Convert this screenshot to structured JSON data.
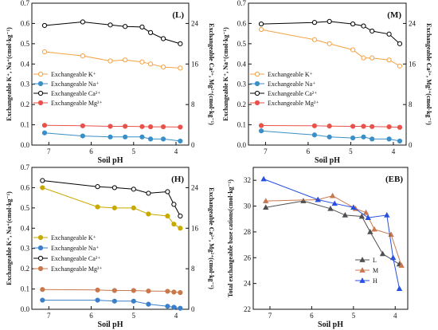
{
  "chart_data": [
    {
      "type": "line",
      "tag": "(L)",
      "xlabel": "Soil pH",
      "ylabel": "Exchangeable K⁺, Na⁺(cmol·kg⁻¹)",
      "ylabel_right": "Exchangeable Ca²⁺, Mg²⁺(cmol·kg⁻¹)",
      "xlim": [
        7.4,
        3.7
      ],
      "x_ticks": [
        "7",
        "6",
        "5",
        "4"
      ],
      "ylim": [
        0,
        0.7
      ],
      "y_ticks": [
        "0.0",
        "0.1",
        "0.2",
        "0.3",
        "0.4",
        "0.5",
        "0.6",
        "0.7"
      ],
      "ylim_right": [
        0,
        28
      ],
      "y_ticks_right": [
        "0",
        "8",
        "16",
        "24"
      ],
      "legend_position": "center-left",
      "series": [
        {
          "name": "Exchangeable K⁺",
          "color": "#f5a142",
          "marker": "circle-open",
          "x": [
            7.1,
            6.2,
            5.55,
            5.2,
            4.8,
            4.6,
            4.3,
            3.9
          ],
          "y": [
            0.46,
            0.44,
            0.415,
            0.42,
            0.41,
            0.4,
            0.385,
            0.38
          ]
        },
        {
          "name": "Exchangeable Na⁺",
          "color": "#3a8fc8",
          "marker": "circle",
          "x": [
            7.1,
            6.2,
            5.55,
            5.2,
            4.8,
            4.6,
            4.3,
            3.9
          ],
          "y": [
            0.06,
            0.045,
            0.04,
            0.04,
            0.04,
            0.03,
            0.03,
            0.02
          ]
        },
        {
          "name": "Exchangeable Ca²⁺",
          "color": "#000000",
          "marker": "circle-open",
          "axis": "right",
          "x": [
            7.1,
            6.2,
            5.55,
            5.2,
            4.8,
            4.6,
            4.3,
            3.9
          ],
          "y": [
            23.6,
            24.3,
            23.7,
            23.4,
            23.3,
            22.2,
            21.0,
            20.0
          ]
        },
        {
          "name": "Exchangeable Mg²⁺",
          "color": "#e8524a",
          "marker": "circle",
          "axis": "right",
          "x": [
            7.1,
            6.2,
            5.55,
            5.2,
            4.8,
            4.6,
            4.3,
            3.9
          ],
          "y": [
            3.9,
            3.8,
            3.7,
            3.7,
            3.65,
            3.6,
            3.6,
            3.55
          ]
        }
      ]
    },
    {
      "type": "line",
      "tag": "(M)",
      "xlabel": "Soil pH",
      "ylabel": "Exchangeable K⁺, Na⁺(cmol·kg⁻¹)",
      "ylabel_right": "Exchangeable Ca²⁺, Mg²⁺(cmol·kg⁻¹)",
      "xlim": [
        7.4,
        3.7
      ],
      "x_ticks": [
        "7",
        "6",
        "5",
        "4"
      ],
      "ylim": [
        0,
        0.7
      ],
      "y_ticks": [
        "0.0",
        "0.1",
        "0.2",
        "0.3",
        "0.4",
        "0.5",
        "0.6",
        "0.7"
      ],
      "ylim_right": [
        0,
        28
      ],
      "y_ticks_right": [
        "0",
        "8",
        "16",
        "24"
      ],
      "legend_position": "center-left",
      "series": [
        {
          "name": "Exchangeable K⁺",
          "color": "#f5a142",
          "marker": "circle-open",
          "x": [
            7.1,
            5.85,
            5.5,
            4.95,
            4.7,
            4.5,
            4.1,
            3.85
          ],
          "y": [
            0.57,
            0.52,
            0.5,
            0.47,
            0.43,
            0.43,
            0.42,
            0.39
          ]
        },
        {
          "name": "Exchangeable Na⁺",
          "color": "#3a8fc8",
          "marker": "circle",
          "x": [
            7.1,
            5.85,
            5.5,
            4.95,
            4.7,
            4.5,
            4.1,
            3.85
          ],
          "y": [
            0.07,
            0.05,
            0.04,
            0.035,
            0.04,
            0.03,
            0.03,
            0.02
          ]
        },
        {
          "name": "Exchangeable Ca²⁺",
          "color": "#000000",
          "marker": "circle-open",
          "axis": "right",
          "x": [
            7.1,
            5.85,
            5.5,
            4.95,
            4.7,
            4.5,
            4.1,
            3.85
          ],
          "y": [
            23.9,
            24.2,
            24.4,
            23.9,
            23.5,
            22.5,
            21.9,
            20.0
          ]
        },
        {
          "name": "Exchangeable Mg²⁺",
          "color": "#e8524a",
          "marker": "circle",
          "axis": "right",
          "x": [
            7.1,
            5.85,
            5.5,
            4.95,
            4.7,
            4.5,
            4.1,
            3.85
          ],
          "y": [
            3.85,
            3.8,
            3.75,
            3.7,
            3.7,
            3.65,
            3.6,
            3.5
          ]
        }
      ]
    },
    {
      "type": "line",
      "tag": "(H)",
      "xlabel": "Soil pH",
      "ylabel": "Exchangeable K⁺, Na⁺(cmol·kg⁻¹)",
      "ylabel_right": "Exchangeable Ca²⁺, Mg²⁺(cmol·kg⁻¹)",
      "xlim": [
        7.4,
        3.7
      ],
      "x_ticks": [
        "7",
        "6",
        "5",
        "4"
      ],
      "ylim": [
        0,
        0.7
      ],
      "y_ticks": [
        "0.0",
        "0.1",
        "0.2",
        "0.3",
        "0.4",
        "0.5",
        "0.6",
        "0.7"
      ],
      "ylim_right": [
        0,
        28
      ],
      "y_ticks_right": [
        "0",
        "8",
        "16",
        "24"
      ],
      "legend_position": "bottom-left",
      "series": [
        {
          "name": "Exchangeable K⁺",
          "color": "#c8a900",
          "marker": "circle",
          "x": [
            7.15,
            5.85,
            5.45,
            5.0,
            4.65,
            4.2,
            4.05,
            3.9
          ],
          "y": [
            0.6,
            0.505,
            0.5,
            0.5,
            0.47,
            0.46,
            0.42,
            0.4
          ]
        },
        {
          "name": "Exchangeable Na⁺",
          "color": "#3a7fc8",
          "marker": "circle",
          "x": [
            7.15,
            5.85,
            5.45,
            5.0,
            4.65,
            4.2,
            4.05,
            3.9
          ],
          "y": [
            0.045,
            0.045,
            0.04,
            0.04,
            0.025,
            0.015,
            0.01,
            0.005
          ]
        },
        {
          "name": "Exchangeable Ca²⁺",
          "color": "#000000",
          "marker": "circle-open",
          "axis": "right",
          "x": [
            7.15,
            5.85,
            5.45,
            5.0,
            4.65,
            4.2,
            4.05,
            3.9
          ],
          "y": [
            25.4,
            24.2,
            24.0,
            23.7,
            22.9,
            23.2,
            20.7,
            18.4
          ]
        },
        {
          "name": "Exchangeable Mg²⁺",
          "color": "#c8784a",
          "marker": "circle",
          "axis": "right",
          "x": [
            7.15,
            5.85,
            5.45,
            5.0,
            4.65,
            4.2,
            4.05,
            3.9
          ],
          "y": [
            3.9,
            3.8,
            3.7,
            3.7,
            3.6,
            3.55,
            3.4,
            3.3
          ]
        }
      ]
    },
    {
      "type": "line",
      "tag": "(EB)",
      "xlabel": "Soil pH",
      "ylabel": "Total exchangeable base cations(cmol·kg⁻¹)",
      "xlim": [
        7.4,
        3.7
      ],
      "x_ticks": [
        "7",
        "6",
        "5",
        "4"
      ],
      "ylim": [
        22,
        33
      ],
      "y_ticks": [
        "22",
        "24",
        "26",
        "28",
        "30",
        "32"
      ],
      "legend_position": "bottom-right",
      "series": [
        {
          "name": "L",
          "color": "#505050",
          "marker": "triangle",
          "x": [
            7.1,
            6.2,
            5.55,
            5.2,
            4.8,
            4.6,
            4.3,
            3.9
          ],
          "y": [
            29.9,
            30.4,
            29.8,
            29.3,
            29.2,
            28.0,
            26.3,
            25.5
          ]
        },
        {
          "name": "M",
          "color": "#c87850",
          "marker": "triangle",
          "x": [
            7.1,
            5.85,
            5.5,
            4.95,
            4.7,
            4.5,
            4.1,
            3.85
          ],
          "y": [
            30.4,
            30.5,
            30.8,
            29.8,
            29.5,
            28.2,
            27.8,
            25.4
          ]
        },
        {
          "name": "H",
          "color": "#2850e0",
          "marker": "triangle",
          "x": [
            7.15,
            5.85,
            5.45,
            5.0,
            4.65,
            4.2,
            4.05,
            3.9
          ],
          "y": [
            32.1,
            30.5,
            30.2,
            29.9,
            29.1,
            29.3,
            26.0,
            23.6
          ]
        }
      ]
    }
  ]
}
